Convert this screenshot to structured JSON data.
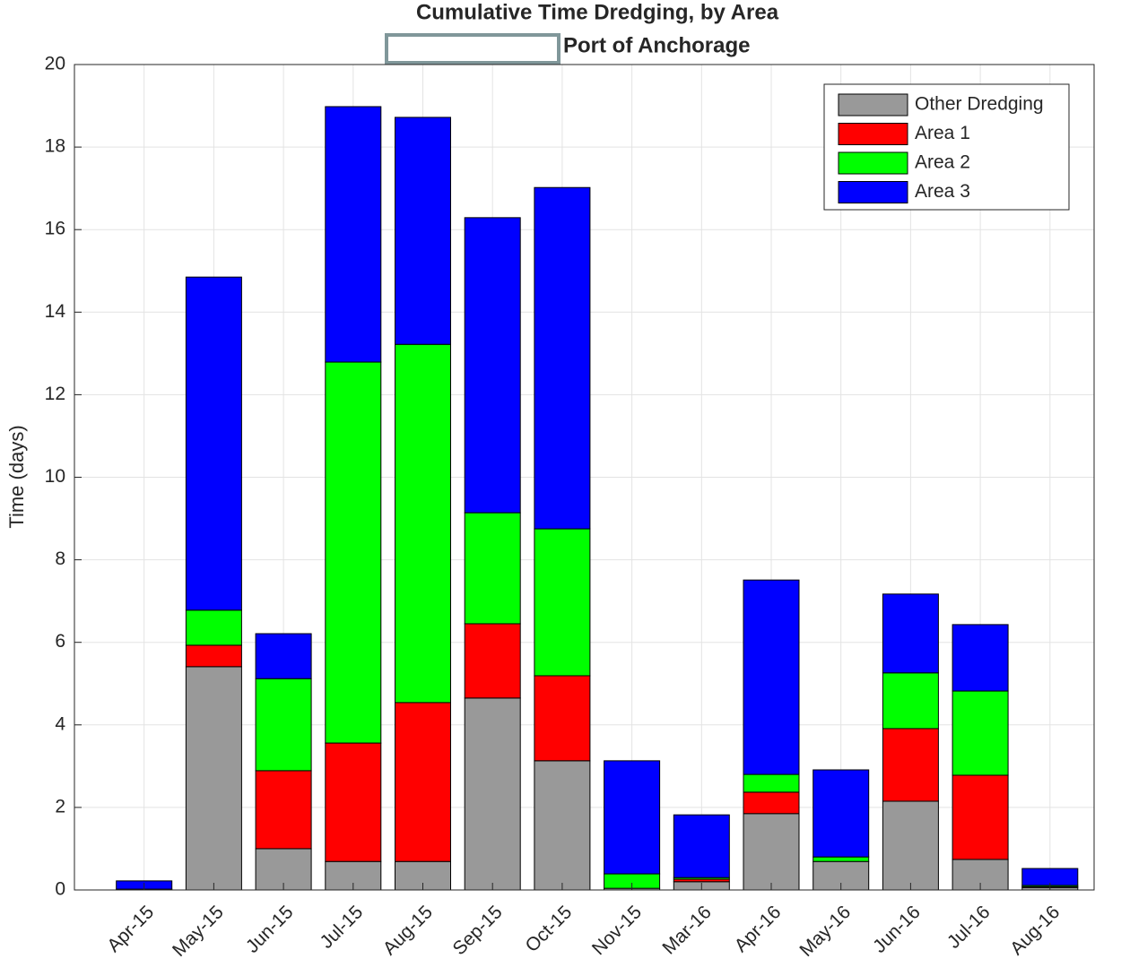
{
  "chart_data": {
    "type": "stacked_bar",
    "title": "Cumulative Time Dredging, by Area",
    "subtitle": "Port of Anchorage",
    "y_label": "Time (days)",
    "categories": [
      "Apr-15",
      "May-15",
      "Jun-15",
      "Jul-15",
      "Aug-15",
      "Sep-15",
      "Oct-15",
      "Nov-15",
      "Mar-16",
      "Apr-16",
      "May-16",
      "Jun-16",
      "Jul-16",
      "Aug-16"
    ],
    "series": [
      {
        "name": "Other Dredging",
        "color": "#999999",
        "values": [
          0.02,
          5.41,
          1.0,
          0.69,
          0.69,
          4.65,
          3.13,
          0.04,
          0.2,
          1.85,
          0.69,
          2.15,
          0.74,
          0.06
        ]
      },
      {
        "name": "Area 1",
        "color": "#ff0000",
        "values": [
          0,
          0.52,
          1.89,
          2.87,
          3.85,
          1.8,
          2.06,
          0,
          0.06,
          0.52,
          0,
          1.76,
          2.04,
          0.02
        ]
      },
      {
        "name": "Area 2",
        "color": "#00ff00",
        "values": [
          0,
          0.85,
          2.23,
          9.23,
          8.68,
          2.69,
          3.56,
          0.35,
          0.04,
          0.43,
          0.11,
          1.35,
          2.04,
          0.03
        ]
      },
      {
        "name": "Area 3",
        "color": "#0000ff",
        "values": [
          0.2,
          8.07,
          1.09,
          6.19,
          5.5,
          7.15,
          8.27,
          2.74,
          1.52,
          4.71,
          2.11,
          1.91,
          1.61,
          0.41
        ]
      }
    ],
    "ylim": [
      0,
      20
    ],
    "yticks": [
      0,
      2,
      4,
      6,
      8,
      10,
      12,
      14,
      16,
      18,
      20
    ],
    "grid": true,
    "legend": "northeast"
  }
}
